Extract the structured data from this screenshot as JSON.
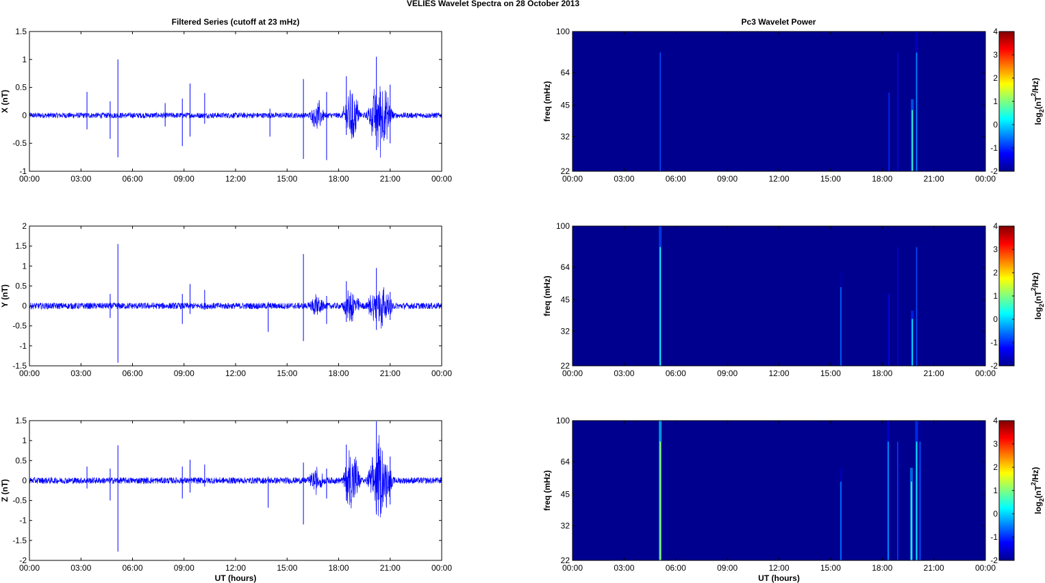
{
  "figure": {
    "suptitle": "VELIES Wavelet Spectra on 28 October   2013",
    "left_title": "Filtered Series (cutoff at 23 mHz)",
    "right_title": "Pc3 Wavelet Power"
  },
  "time_ticks": [
    "00:00",
    "03:00",
    "06:00",
    "09:00",
    "12:00",
    "15:00",
    "18:00",
    "21:00",
    "00:00"
  ],
  "colors": {
    "series": "#0000ff",
    "spectrogram_background": "#00008f",
    "axis": "#000000"
  },
  "chart_data": [
    {
      "type": "line",
      "name": "x-series",
      "ylabel": "X (nT)",
      "xlabel": "",
      "xlim": [
        0,
        24
      ],
      "ylim": [
        -1,
        1.5
      ],
      "yticks": [
        -1,
        -0.5,
        0,
        0.5,
        1,
        1.5
      ],
      "ytick_labels": [
        "-1",
        "-0.5",
        "0",
        "0.5",
        "1",
        "1.5"
      ],
      "noise_amplitude": 0.05,
      "spikes": [
        {
          "t": 3.35,
          "up": 0.42,
          "down": -0.25
        },
        {
          "t": 4.7,
          "up": 0.25,
          "down": -0.42
        },
        {
          "t": 5.15,
          "up": 1.0,
          "down": -0.75
        },
        {
          "t": 7.9,
          "up": 0.22,
          "down": -0.2
        },
        {
          "t": 8.9,
          "up": 0.3,
          "down": -0.55
        },
        {
          "t": 9.35,
          "up": 0.57,
          "down": -0.38
        },
        {
          "t": 10.2,
          "up": 0.4,
          "down": -0.15
        },
        {
          "t": 14.0,
          "up": 0.12,
          "down": -0.38
        },
        {
          "t": 15.95,
          "up": 0.65,
          "down": -0.78
        },
        {
          "t": 17.3,
          "up": 0.42,
          "down": -0.8
        },
        {
          "t": 18.45,
          "up": 0.7,
          "down": -0.35
        },
        {
          "t": 20.2,
          "up": 1.05,
          "down": -0.62
        },
        {
          "t": 21.0,
          "up": 0.55,
          "down": -0.5
        }
      ],
      "bursts": [
        {
          "start": 16.3,
          "end": 17.2,
          "amplitude": 0.22
        },
        {
          "start": 18.2,
          "end": 19.3,
          "amplitude": 0.5
        },
        {
          "start": 19.6,
          "end": 21.2,
          "amplitude": 0.6
        }
      ]
    },
    {
      "type": "line",
      "name": "y-series",
      "ylabel": "Y (nT)",
      "xlabel": "",
      "xlim": [
        0,
        24
      ],
      "ylim": [
        -1.5,
        2
      ],
      "yticks": [
        -1.5,
        -1,
        -0.5,
        0,
        0.5,
        1,
        1.5,
        2
      ],
      "ytick_labels": [
        "-1.5",
        "-1",
        "-0.5",
        "0",
        "0.5",
        "1",
        "1.5",
        "2"
      ],
      "noise_amplitude": 0.08,
      "spikes": [
        {
          "t": 4.7,
          "up": 0.3,
          "down": -0.3
        },
        {
          "t": 5.15,
          "up": 1.55,
          "down": -1.42
        },
        {
          "t": 8.9,
          "up": 0.3,
          "down": -0.45
        },
        {
          "t": 9.35,
          "up": 0.55,
          "down": -0.2
        },
        {
          "t": 10.2,
          "up": 0.4,
          "down": -0.1
        },
        {
          "t": 13.9,
          "up": 0.1,
          "down": -0.65
        },
        {
          "t": 15.95,
          "up": 1.3,
          "down": -0.88
        },
        {
          "t": 17.3,
          "up": 0.25,
          "down": -0.45
        },
        {
          "t": 18.45,
          "up": 0.62,
          "down": -0.4
        },
        {
          "t": 20.2,
          "up": 0.95,
          "down": -0.6
        },
        {
          "t": 21.0,
          "up": 0.35,
          "down": -0.35
        }
      ],
      "bursts": [
        {
          "start": 16.2,
          "end": 17.2,
          "amplitude": 0.18
        },
        {
          "start": 18.2,
          "end": 19.3,
          "amplitude": 0.35
        },
        {
          "start": 19.6,
          "end": 21.2,
          "amplitude": 0.5
        }
      ]
    },
    {
      "type": "line",
      "name": "z-series",
      "ylabel": "Z (nT)",
      "xlabel": "UT (hours)",
      "xlim": [
        0,
        24
      ],
      "ylim": [
        -2,
        1.5
      ],
      "yticks": [
        -2,
        -1.5,
        -1,
        -0.5,
        0,
        0.5,
        1,
        1.5
      ],
      "ytick_labels": [
        "-2",
        "-1.5",
        "-1",
        "-0.5",
        "0",
        "0.5",
        "1",
        "1.5"
      ],
      "noise_amplitude": 0.08,
      "spikes": [
        {
          "t": 3.35,
          "up": 0.35,
          "down": -0.2
        },
        {
          "t": 4.7,
          "up": 0.3,
          "down": -0.5
        },
        {
          "t": 5.15,
          "up": 0.88,
          "down": -1.78
        },
        {
          "t": 8.9,
          "up": 0.35,
          "down": -0.45
        },
        {
          "t": 9.35,
          "up": 0.52,
          "down": -0.3
        },
        {
          "t": 10.2,
          "up": 0.4,
          "down": -0.15
        },
        {
          "t": 13.9,
          "up": 0.1,
          "down": -0.68
        },
        {
          "t": 15.95,
          "up": 0.45,
          "down": -1.1
        },
        {
          "t": 17.3,
          "up": 0.3,
          "down": -0.45
        },
        {
          "t": 18.45,
          "up": 0.9,
          "down": -0.5
        },
        {
          "t": 20.2,
          "up": 1.48,
          "down": -0.85
        },
        {
          "t": 21.0,
          "up": 0.6,
          "down": -0.6
        }
      ],
      "bursts": [
        {
          "start": 16.2,
          "end": 17.2,
          "amplitude": 0.22
        },
        {
          "start": 18.2,
          "end": 19.3,
          "amplitude": 0.75
        },
        {
          "start": 19.6,
          "end": 21.2,
          "amplitude": 0.9
        }
      ]
    },
    {
      "type": "heatmap",
      "name": "x-spectrum",
      "ylabel": "freq (mHz)",
      "xlabel": "",
      "xlim": [
        0,
        24
      ],
      "ylim": [
        22,
        100
      ],
      "yscale": "log",
      "yticks": [
        22,
        32,
        45,
        64,
        100
      ],
      "colorbar": {
        "range": [
          -2,
          4
        ],
        "ticks": [
          -2,
          -1,
          0,
          1,
          2,
          3,
          4
        ],
        "label_prefix": "log",
        "label_sub": "2",
        "label_mid": "(nT",
        "label_sup": "2",
        "label_end": "/Hz)"
      },
      "streaks": [
        {
          "t": 5.1,
          "f_low": 22,
          "f_high": 100,
          "level": -0.8
        },
        {
          "t": 18.4,
          "f_low": 22,
          "f_high": 60,
          "level": -1.0
        },
        {
          "t": 18.9,
          "f_low": 22,
          "f_high": 100,
          "level": -1.3
        },
        {
          "t": 19.75,
          "f_low": 22,
          "f_high": 48,
          "level": 0.6
        },
        {
          "t": 20.0,
          "f_low": 22,
          "f_high": 100,
          "level": -0.4
        }
      ]
    },
    {
      "type": "heatmap",
      "name": "y-spectrum",
      "ylabel": "freq (mHz)",
      "xlabel": "",
      "xlim": [
        0,
        24
      ],
      "ylim": [
        22,
        100
      ],
      "yscale": "log",
      "yticks": [
        22,
        32,
        45,
        64,
        100
      ],
      "colorbar": {
        "range": [
          -2,
          4
        ],
        "ticks": [
          -2,
          -1,
          0,
          1,
          2,
          3,
          4
        ],
        "label_prefix": "log",
        "label_sub": "2",
        "label_mid": "(nT",
        "label_sup": "2",
        "label_end": "/Hz)"
      },
      "streaks": [
        {
          "t": 5.1,
          "f_low": 22,
          "f_high": 100,
          "level": 0.4
        },
        {
          "t": 15.6,
          "f_low": 22,
          "f_high": 60,
          "level": -0.6
        },
        {
          "t": 18.4,
          "f_low": 22,
          "f_high": 55,
          "level": -1.2
        },
        {
          "t": 18.9,
          "f_low": 22,
          "f_high": 100,
          "level": -1.4
        },
        {
          "t": 19.75,
          "f_low": 22,
          "f_high": 40,
          "level": 0.2
        },
        {
          "t": 20.0,
          "f_low": 22,
          "f_high": 100,
          "level": -0.8
        }
      ]
    },
    {
      "type": "heatmap",
      "name": "z-spectrum",
      "ylabel": "freq (mHz)",
      "xlabel": "UT (hours)",
      "xlim": [
        0,
        24
      ],
      "ylim": [
        22,
        100
      ],
      "yscale": "log",
      "yticks": [
        22,
        32,
        45,
        64,
        100
      ],
      "colorbar": {
        "range": [
          -2,
          4
        ],
        "ticks": [
          -2,
          -1,
          0,
          1,
          2,
          3,
          4
        ],
        "label_prefix": "log",
        "label_sub": "2",
        "label_mid": "(nT",
        "label_sup": "2",
        "label_end": "/Hz)"
      },
      "streaks": [
        {
          "t": 5.1,
          "f_low": 22,
          "f_high": 100,
          "level": 1.2
        },
        {
          "t": 15.6,
          "f_low": 22,
          "f_high": 60,
          "level": -0.5
        },
        {
          "t": 18.35,
          "f_low": 22,
          "f_high": 100,
          "level": -0.3
        },
        {
          "t": 18.9,
          "f_low": 22,
          "f_high": 100,
          "level": -0.9
        },
        {
          "t": 19.7,
          "f_low": 22,
          "f_high": 60,
          "level": 0.8
        },
        {
          "t": 20.0,
          "f_low": 22,
          "f_high": 100,
          "level": 0.3
        },
        {
          "t": 20.2,
          "f_low": 22,
          "f_high": 100,
          "level": -0.7
        }
      ]
    }
  ]
}
